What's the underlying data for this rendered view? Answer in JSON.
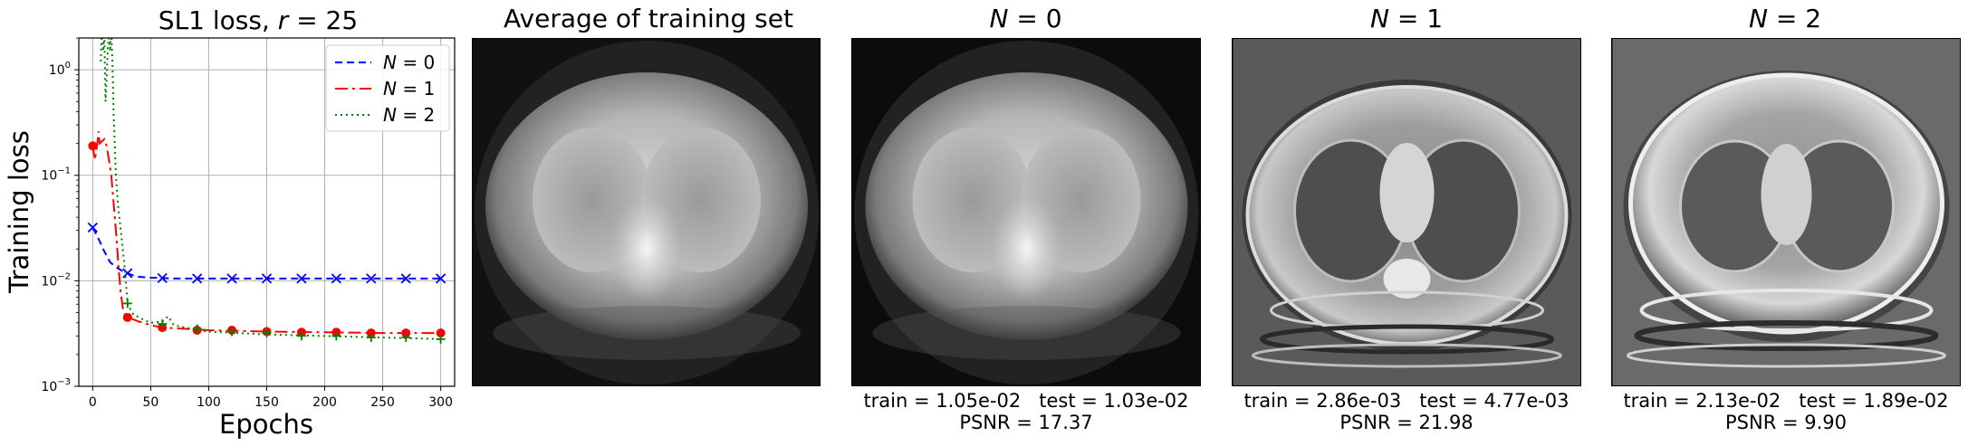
{
  "chart_data": {
    "type": "line",
    "title_prefix": "SL1 loss, ",
    "title_var": "r",
    "title_suffix": " = 25",
    "xlabel": "Epochs",
    "ylabel": "Training loss",
    "xlim": [
      -12,
      312
    ],
    "ylim": [
      0.001,
      2.0
    ],
    "yscale": "log",
    "grid": true,
    "legend_position": "top-right",
    "x_ticks": [
      0,
      50,
      100,
      150,
      200,
      250,
      300
    ],
    "y_ticks": [
      {
        "value": 0.001,
        "base": "10",
        "exp": "−3"
      },
      {
        "value": 0.01,
        "base": "10",
        "exp": "−2"
      },
      {
        "value": 0.1,
        "base": "10",
        "exp": "−1"
      },
      {
        "value": 1,
        "base": "10",
        "exp": "0"
      }
    ],
    "series": [
      {
        "legend_var": "N",
        "legend_suffix": " = 0",
        "color": "#0000ff",
        "dash": "8,5",
        "marker": "x",
        "x": [
          0,
          5,
          10,
          15,
          20,
          25,
          30,
          35,
          40,
          50,
          60,
          70,
          80,
          90,
          100,
          120,
          150,
          200,
          250,
          300
        ],
        "y": [
          0.032,
          0.025,
          0.019,
          0.015,
          0.0135,
          0.0125,
          0.0118,
          0.0112,
          0.0109,
          0.0107,
          0.0106,
          0.0105,
          0.0105,
          0.0105,
          0.0105,
          0.0105,
          0.0105,
          0.0105,
          0.0105,
          0.0105
        ],
        "markers_x": [
          0,
          30,
          60,
          90,
          120,
          150,
          180,
          210,
          240,
          270,
          300
        ],
        "markers_y": [
          0.032,
          0.0118,
          0.0106,
          0.0105,
          0.0105,
          0.0105,
          0.0105,
          0.0105,
          0.0105,
          0.0105,
          0.0105
        ]
      },
      {
        "legend_var": "N",
        "legend_suffix": " = 1",
        "color": "#ff0000",
        "dash": "14,5,3,5",
        "marker": "o",
        "x": [
          0,
          2,
          4,
          5,
          6,
          8,
          10,
          12,
          14,
          16,
          18,
          20,
          22,
          24,
          26,
          28,
          30,
          35,
          40,
          50,
          60,
          80,
          100,
          150,
          200,
          250,
          300
        ],
        "y": [
          0.19,
          0.14,
          0.2,
          0.26,
          0.2,
          0.21,
          0.22,
          0.19,
          0.14,
          0.1,
          0.055,
          0.03,
          0.015,
          0.008,
          0.0055,
          0.0048,
          0.0045,
          0.0043,
          0.0041,
          0.0038,
          0.0036,
          0.0035,
          0.0034,
          0.0033,
          0.00325,
          0.0032,
          0.0032
        ],
        "markers_x": [
          0,
          30,
          60,
          90,
          120,
          150,
          180,
          210,
          240,
          270,
          300
        ],
        "markers_y": [
          0.19,
          0.0045,
          0.0036,
          0.0034,
          0.0034,
          0.0033,
          0.00325,
          0.00325,
          0.0032,
          0.0032,
          0.0032
        ]
      },
      {
        "legend_var": "N",
        "legend_suffix": " = 2",
        "color": "#008000",
        "dash": "2,4",
        "marker": "+",
        "x": [
          7,
          8,
          9,
          10,
          11,
          12,
          13,
          14,
          15,
          16,
          17,
          18,
          19,
          20,
          22,
          25,
          28,
          30,
          35,
          40,
          45,
          50,
          60,
          65,
          70,
          80,
          90,
          100,
          150,
          200,
          250,
          300
        ],
        "y": [
          1.2,
          3.0,
          1.5,
          2.2,
          0.5,
          0.8,
          1.6,
          2.0,
          1.5,
          2.4,
          1.2,
          0.4,
          0.2,
          0.1,
          0.05,
          0.025,
          0.012,
          0.006,
          0.0048,
          0.0045,
          0.0042,
          0.004,
          0.0041,
          0.0046,
          0.0038,
          0.0036,
          0.0034,
          0.0033,
          0.0031,
          0.003,
          0.0029,
          0.0028
        ],
        "markers_x": [
          30,
          60,
          90,
          120,
          150,
          180,
          210,
          240,
          270,
          300
        ],
        "markers_y": [
          0.0061,
          0.0039,
          0.0035,
          0.0033,
          0.0032,
          0.003,
          0.003,
          0.0029,
          0.0029,
          0.0028
        ]
      }
    ]
  },
  "panels": [
    {
      "title": "Average of training set",
      "title_var": "",
      "train": "",
      "test": "",
      "psnr": ""
    },
    {
      "title": " = 0",
      "title_var": "N",
      "train": "train = 1.05e-02",
      "test": "test = 1.03e-02",
      "psnr": "PSNR = 17.37"
    },
    {
      "title": " = 1",
      "title_var": "N",
      "train": "train = 2.86e-03",
      "test": "test = 4.77e-03",
      "psnr": "PSNR = 21.98"
    },
    {
      "title": " = 2",
      "title_var": "N",
      "train": "train = 2.13e-02",
      "test": "test = 1.89e-02",
      "psnr": "PSNR = 9.90"
    }
  ]
}
